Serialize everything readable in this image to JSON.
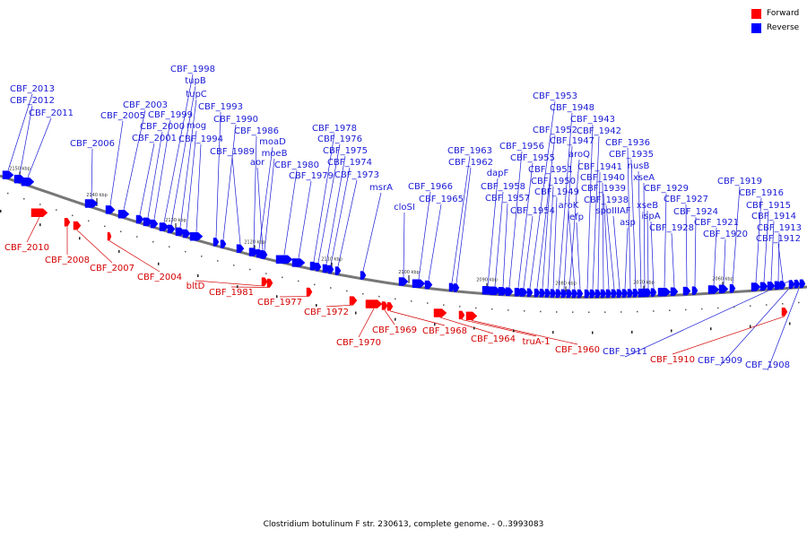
{
  "legend": [
    {
      "label": "Forward",
      "color": "#ff0000"
    },
    {
      "label": "Reverse",
      "color": "#0000ff"
    }
  ],
  "caption": "Clostridium botulinum F str. 230613, complete genome. - 0..3993083",
  "colors": {
    "forward": "#ff0000",
    "reverse": "#0000ff",
    "forward_text": "#d40000",
    "reverse_text": "#1a1ad6",
    "backbone": "#777777"
  },
  "ticks": [
    "2150 kbp",
    "2140 kbp",
    "2130 kbp",
    "2120 kbp",
    "2110 kbp",
    "2100 kbp",
    "2090 kbp",
    "2080 kbp",
    "2070 kbp",
    "2060 kbp"
  ],
  "reverse_genes": [
    "CBF_2013",
    "CBF_2012",
    "CBF_2011",
    "CBF_2006",
    "CBF_2005",
    "CBF_2003",
    "CBF_2001",
    "CBF_2000",
    "CBF_1999",
    "CBF_1998",
    "tupB",
    "tupC",
    "mog",
    "CBF_1994",
    "CBF_1993",
    "CBF_1990",
    "CBF_1989",
    "CBF_1986",
    "moaD",
    "moeB",
    "aor",
    "CBF_1980",
    "CBF_1979",
    "CBF_1978",
    "CBF_1976",
    "CBF_1975",
    "CBF_1974",
    "CBF_1973",
    "msrA",
    "cloSI",
    "CBF_1966",
    "CBF_1965",
    "CBF_1963",
    "CBF_1962",
    "dapF",
    "CBF_1958",
    "CBF_1957",
    "CBF_1956",
    "CBF_1955",
    "CBF_1954",
    "CBF_1953",
    "CBF_1952",
    "CBF_1951",
    "CBF_1950",
    "CBF_1949",
    "CBF_1948",
    "CBF_1947",
    "aroQ",
    "aroK",
    "efp",
    "CBF_1943",
    "CBF_1942",
    "CBF_1941",
    "CBF_1940",
    "CBF_1939",
    "CBF_1938",
    "spoIIIAF",
    "asp",
    "CBF_1936",
    "CBF_1935",
    "nusB",
    "xseA",
    "xseB",
    "ispA",
    "CBF_1929",
    "CBF_1928",
    "CBF_1927",
    "CBF_1924",
    "CBF_1921",
    "CBF_1920",
    "CBF_1919",
    "CBF_1916",
    "CBF_1915",
    "CBF_1914",
    "CBF_1913",
    "CBF_1912",
    "CBF_1911",
    "CBF_1909",
    "CBF_1908"
  ],
  "forward_genes": [
    "CBF_2010",
    "CBF_2008",
    "CBF_2007",
    "CBF_2004",
    "bltD",
    "CBF_1981",
    "CBF_1977",
    "CBF_1972",
    "CBF_1970",
    "CBF_1969",
    "CBF_1968",
    "CBF_1964",
    "truA-1",
    "CBF_1960",
    "CBF_1910"
  ]
}
